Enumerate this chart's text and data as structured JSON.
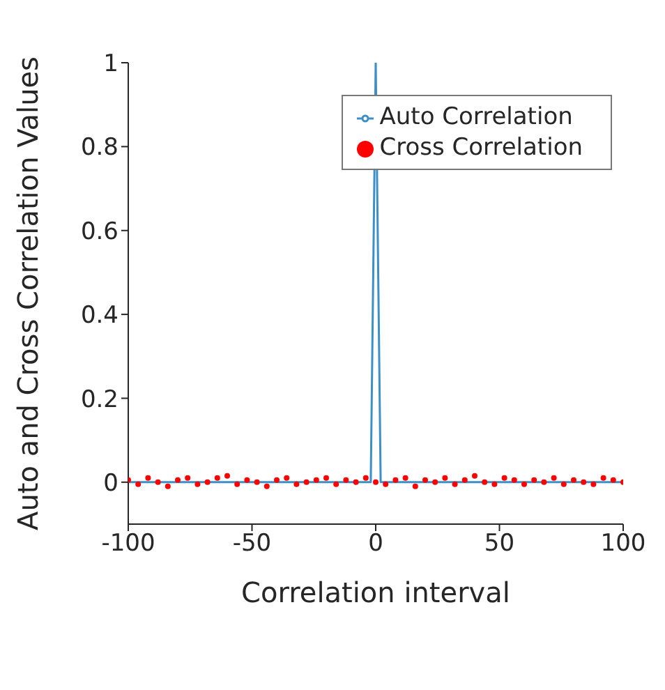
{
  "chart_data": {
    "type": "line",
    "xlabel": "Correlation interval",
    "ylabel": "Auto and Cross Correlation Values",
    "xlim": [
      -100,
      100
    ],
    "xticks": [
      -100,
      -50,
      0,
      50,
      100
    ],
    "ylim": [
      -0.1,
      1
    ],
    "yticks": [
      0,
      0.2,
      0.4,
      0.6,
      0.8,
      1
    ],
    "grid": false,
    "legend": "top right",
    "series": [
      {
        "name": "Auto Correlation",
        "color": "#3d8fc8",
        "x": [
          -100,
          -2,
          0,
          2,
          100
        ],
        "values": [
          0,
          0,
          1,
          0,
          0
        ]
      },
      {
        "name": "Cross Correlation",
        "type": "scatter",
        "marker": "circle",
        "color": "#ff0000",
        "x": [
          -100,
          -96,
          -92,
          -88,
          -84,
          -80,
          -76,
          -72,
          -68,
          -64,
          -60,
          -56,
          -52,
          -48,
          -44,
          -40,
          -36,
          -32,
          -28,
          -24,
          -20,
          -16,
          -12,
          -8,
          -4,
          0,
          4,
          8,
          12,
          16,
          20,
          24,
          28,
          32,
          36,
          40,
          44,
          48,
          52,
          56,
          60,
          64,
          68,
          72,
          76,
          80,
          84,
          88,
          92,
          96,
          100
        ],
        "values": [
          0.005,
          -0.005,
          0.01,
          0,
          -0.01,
          0.005,
          0.01,
          -0.005,
          0,
          0.01,
          0.015,
          -0.005,
          0.005,
          0,
          -0.01,
          0.005,
          0.01,
          -0.005,
          0,
          0.005,
          0.01,
          -0.005,
          0.005,
          0,
          0.01,
          0,
          -0.005,
          0.005,
          0.01,
          -0.01,
          0.005,
          0,
          0.01,
          -0.005,
          0.005,
          0.015,
          0,
          -0.005,
          0.01,
          0.005,
          -0.005,
          0.005,
          0,
          0.01,
          -0.005,
          0.005,
          0,
          -0.005,
          0.01,
          0.005,
          0
        ]
      }
    ]
  }
}
